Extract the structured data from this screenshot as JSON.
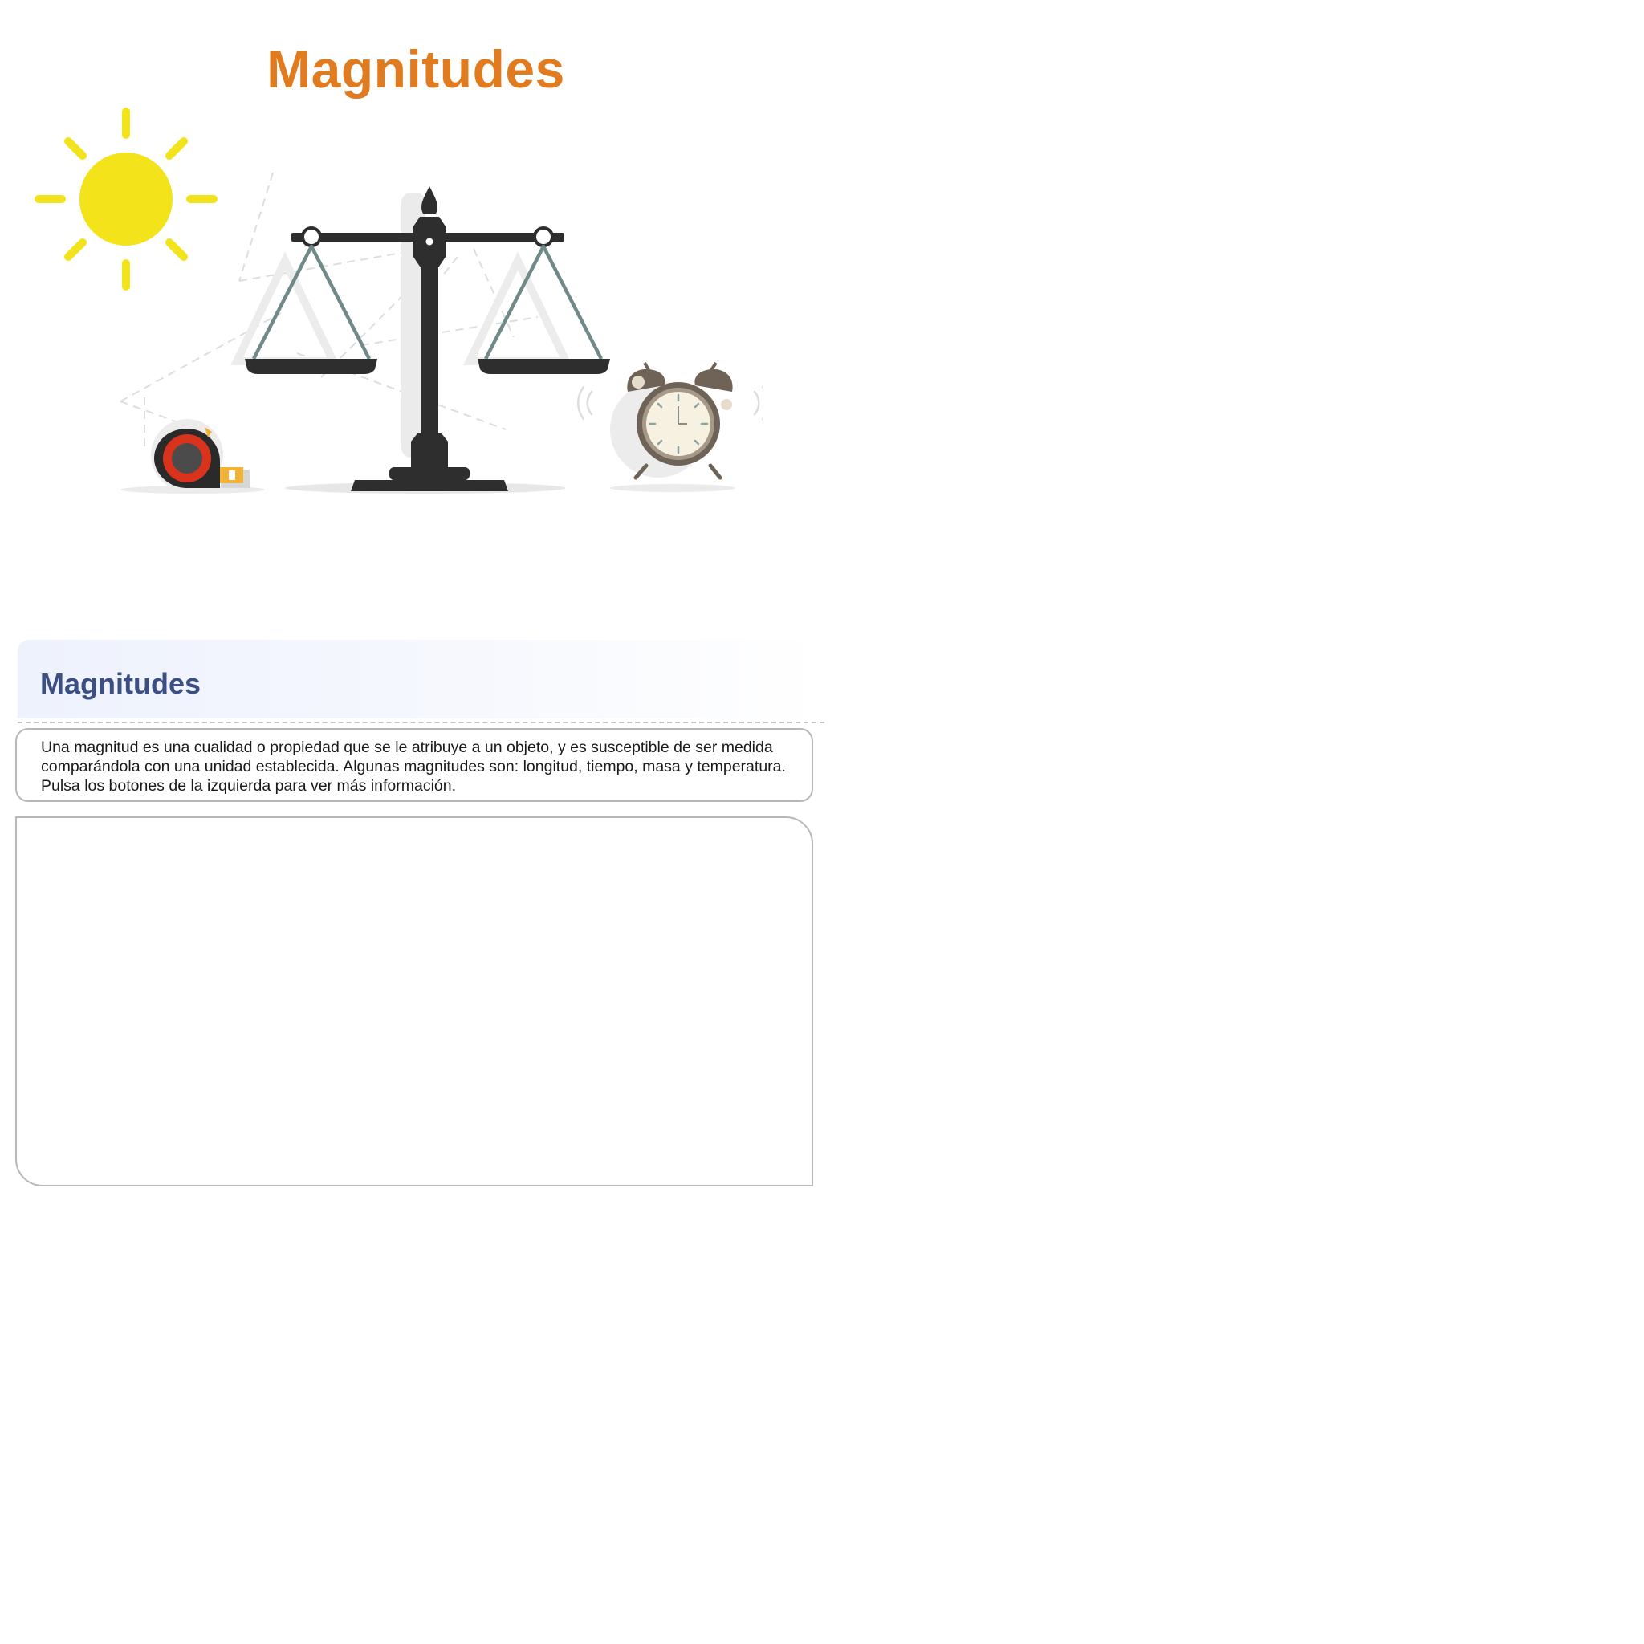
{
  "page": {
    "title": "Magnitudes"
  },
  "illustration": {
    "icons": [
      "sun-icon",
      "balance-scale-icon",
      "tape-measure-icon",
      "alarm-clock-icon"
    ]
  },
  "section": {
    "title": "Magnitudes",
    "description": "Una magnitud es una cualidad o propiedad que se le atribuye a un objeto, y es susceptible de ser medida comparándola con una unidad establecida. Algunas magnitudes son: longitud, tiempo, masa y temperatura. Pulsa los botones de la izquierda para ver más información."
  },
  "colors": {
    "title_orange": "#e07b20",
    "section_title_blue": "#3b4f82",
    "sun_yellow": "#f3e31b",
    "scale_dark": "#2e2e2e",
    "scale_cord": "#6f8a88",
    "tape_red": "#d9331e",
    "clock_brown": "#6e6356"
  }
}
